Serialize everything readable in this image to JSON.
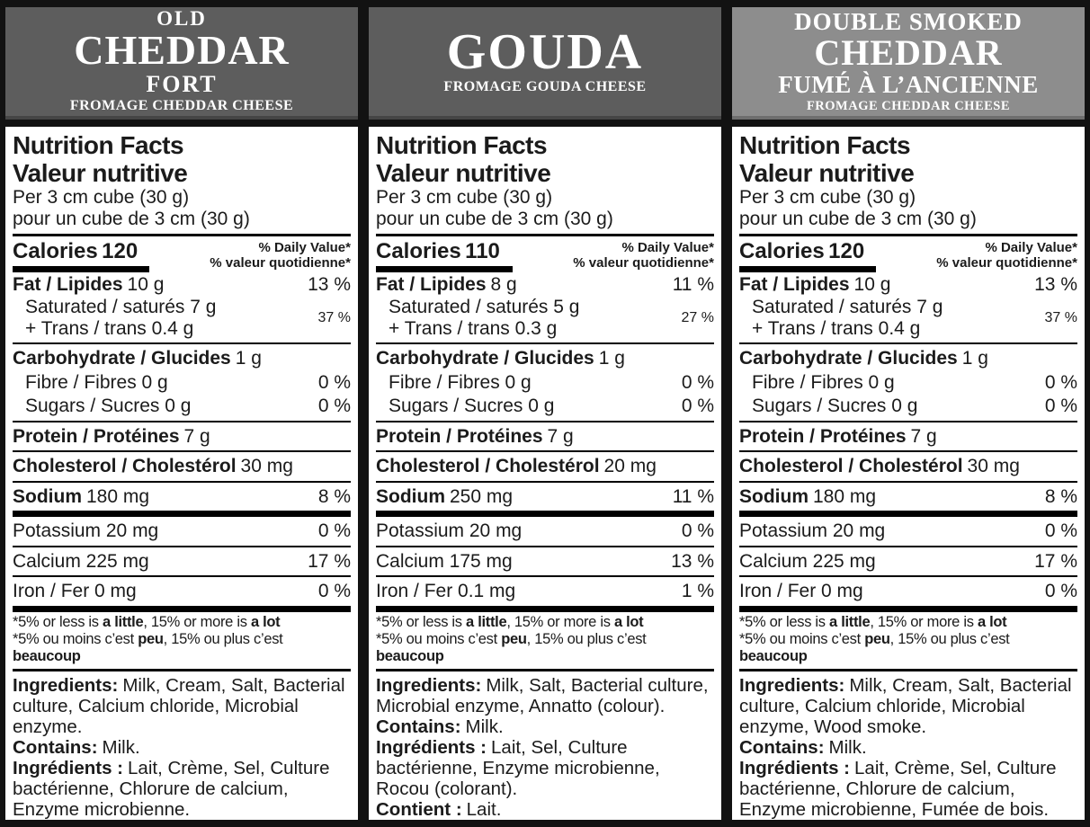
{
  "shared": {
    "title_en": "Nutrition Facts",
    "title_fr": "Valeur nutritive",
    "serving_en": "Per 3 cm cube (30 g)",
    "serving_fr": "pour un cube de 3 cm (30 g)",
    "calories_label": "Calories",
    "dv_header_en": "% Daily Value*",
    "dv_header_fr": "% valeur quotidienne*",
    "footnote_en": [
      "*5% or less is ",
      "a little",
      ", 15% or more is ",
      "a lot"
    ],
    "footnote_fr": [
      "*5% ou moins c’est ",
      "peu",
      ", 15% ou plus c’est ",
      "beaucoup"
    ],
    "colors": {
      "header_dark_gray": "#5d5d5d",
      "header_light_gray": "#8d8d8d",
      "frame_black": "#121212",
      "label_bg": "#ffffff",
      "text": "#1b1b1b"
    }
  },
  "panels": [
    {
      "header": {
        "line1": "OLD",
        "line2": "CHEDDAR",
        "line3": "FORT",
        "line4": "FROMAGE CHEDDAR CHEESE"
      },
      "nf": {
        "calories": "120",
        "fat_label": "Fat / Lipides",
        "fat_amount": "10 g",
        "fat_dv": "13 %",
        "saturated": "Saturated / saturés 7 g",
        "trans": "+ Trans / trans 0.4 g",
        "sat_trans_dv": "37 %",
        "carb_label": "Carbohydrate / Glucides",
        "carb_amount": "1 g",
        "fibre": "Fibre / Fibres 0 g",
        "fibre_dv": "0 %",
        "sugars": "Sugars / Sucres 0 g",
        "sugars_dv": "0 %",
        "protein_label": "Protein / Protéines",
        "protein_amount": "7 g",
        "cholesterol_label": "Cholesterol / Cholestérol",
        "cholesterol_amount": "30 mg",
        "sodium_label": "Sodium",
        "sodium_amount": "180 mg",
        "sodium_dv": "8 %",
        "potassium": "Potassium 20 mg",
        "potassium_dv": "0 %",
        "calcium": "Calcium 225 mg",
        "calcium_dv": "17 %",
        "iron": "Iron / Fer 0 mg",
        "iron_dv": "0 %"
      },
      "ingredients": {
        "en_label": "Ingredients:",
        "en_text": "Milk, Cream, Salt, Bacterial culture, Calcium chloride, Microbial enzyme.",
        "contains_label": "Contains:",
        "contains_text": "Milk.",
        "fr_label": "Ingrédients :",
        "fr_text": "Lait, Crème, Sel, Culture bactérienne, Chlorure de calcium, Enzyme microbienne.",
        "contient_label": "Contient :",
        "contient_text": "Lait."
      }
    },
    {
      "header": {
        "line1": "GOUDA",
        "line2": "FROMAGE GOUDA CHEESE"
      },
      "nf": {
        "calories": "110",
        "fat_label": "Fat / Lipides",
        "fat_amount": "8 g",
        "fat_dv": "11 %",
        "saturated": "Saturated / saturés 5 g",
        "trans": "+ Trans / trans 0.3 g",
        "sat_trans_dv": "27 %",
        "carb_label": "Carbohydrate / Glucides",
        "carb_amount": "1 g",
        "fibre": "Fibre / Fibres 0 g",
        "fibre_dv": "0 %",
        "sugars": "Sugars / Sucres 0 g",
        "sugars_dv": "0 %",
        "protein_label": "Protein / Protéines",
        "protein_amount": "7 g",
        "cholesterol_label": "Cholesterol / Cholestérol",
        "cholesterol_amount": "20 mg",
        "sodium_label": "Sodium",
        "sodium_amount": "250 mg",
        "sodium_dv": "11 %",
        "potassium": "Potassium 20 mg",
        "potassium_dv": "0 %",
        "calcium": "Calcium 175 mg",
        "calcium_dv": "13 %",
        "iron": "Iron / Fer 0.1 mg",
        "iron_dv": "1 %"
      },
      "ingredients": {
        "en_label": "Ingredients:",
        "en_text": "Milk, Salt, Bacterial culture, Microbial enzyme, Annatto (colour).",
        "contains_label": "Contains:",
        "contains_text": "Milk.",
        "fr_label": "Ingrédients :",
        "fr_text": "Lait, Sel, Culture bactérienne, Enzyme microbienne, Rocou (colorant).",
        "contient_label": "Contient :",
        "contient_text": "Lait."
      }
    },
    {
      "header": {
        "line1": "DOUBLE SMOKED",
        "line2": "CHEDDAR",
        "line3": "FUMÉ À L’ANCIENNE",
        "line4": "FROMAGE CHEDDAR CHEESE"
      },
      "nf": {
        "calories": "120",
        "fat_label": "Fat / Lipides",
        "fat_amount": "10 g",
        "fat_dv": "13 %",
        "saturated": "Saturated / saturés 7 g",
        "trans": "+ Trans / trans 0.4 g",
        "sat_trans_dv": "37 %",
        "carb_label": "Carbohydrate / Glucides",
        "carb_amount": "1 g",
        "fibre": "Fibre / Fibres 0 g",
        "fibre_dv": "0 %",
        "sugars": "Sugars / Sucres 0 g",
        "sugars_dv": "0 %",
        "protein_label": "Protein / Protéines",
        "protein_amount": "7 g",
        "cholesterol_label": "Cholesterol / Cholestérol",
        "cholesterol_amount": "30 mg",
        "sodium_label": "Sodium",
        "sodium_amount": "180 mg",
        "sodium_dv": "8 %",
        "potassium": "Potassium 20 mg",
        "potassium_dv": "0 %",
        "calcium": "Calcium 225 mg",
        "calcium_dv": "17 %",
        "iron": "Iron / Fer 0 mg",
        "iron_dv": "0 %"
      },
      "ingredients": {
        "en_label": "Ingredients:",
        "en_text": "Milk, Cream, Salt, Bacterial culture, Calcium chloride, Microbial enzyme, Wood smoke.",
        "contains_label": "Contains:",
        "contains_text": "Milk.",
        "fr_label": "Ingrédients :",
        "fr_text": "Lait, Crème, Sel, Culture bactérienne, Chlorure de calcium, Enzyme microbienne, Fumée de bois.",
        "contient_label": "Contient :",
        "contient_text": "Lait."
      }
    }
  ]
}
